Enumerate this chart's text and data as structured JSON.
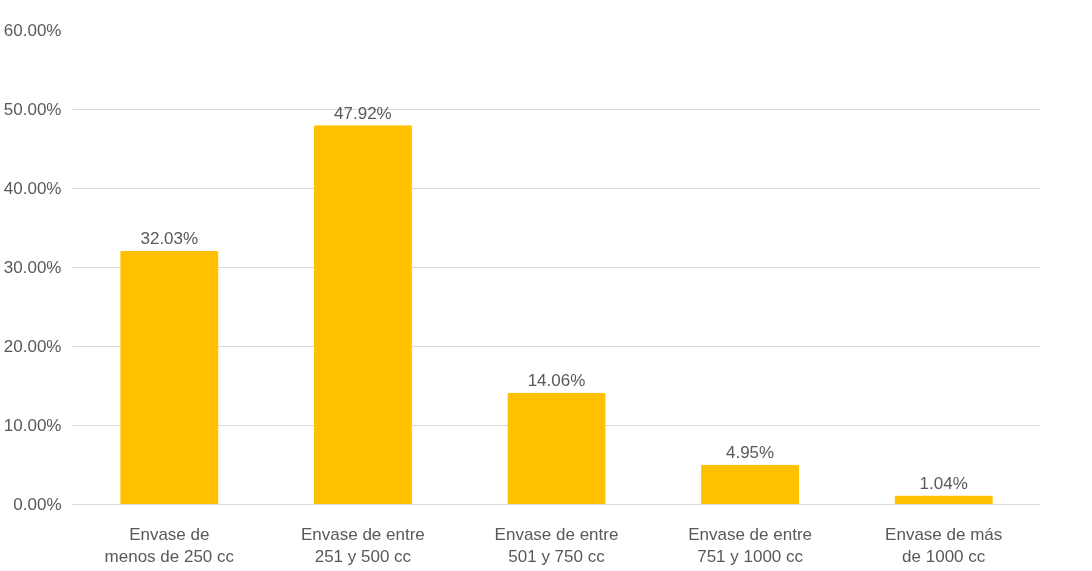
{
  "chart_data": {
    "type": "bar",
    "categories": [
      "Envase de\nmenos de 250 cc",
      "Envase de entre\n251 y 500 cc",
      "Envase de entre\n501 y 750 cc",
      "Envase de entre\n751 y 1000 cc",
      "Envase de más\nde 1000 cc"
    ],
    "values": [
      32.03,
      47.92,
      14.06,
      4.95,
      1.04
    ],
    "value_labels": [
      "32.03%",
      "47.92%",
      "14.06%",
      "4.95%",
      "1.04%"
    ],
    "color": "#ffc000",
    "ylim": [
      0,
      60
    ],
    "yticks": [
      {
        "value": 0,
        "label": "0.00%"
      },
      {
        "value": 10,
        "label": "10.00%"
      },
      {
        "value": 20,
        "label": "20.00%"
      },
      {
        "value": 30,
        "label": "30.00%"
      },
      {
        "value": 40,
        "label": "40.00%"
      },
      {
        "value": 50,
        "label": "50.00%"
      },
      {
        "value": 60,
        "label": "60.00%"
      }
    ],
    "grid": "y"
  }
}
